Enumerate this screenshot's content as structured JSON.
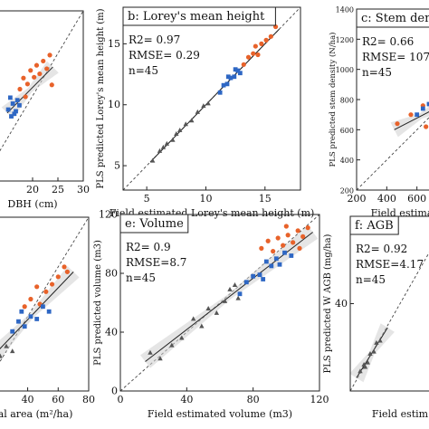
{
  "figure": {
    "panel_order": [
      "a",
      "b",
      "c",
      "d",
      "e",
      "f"
    ]
  },
  "chart_data": [
    {
      "id": "a",
      "type": "scatter",
      "title": "",
      "xlabel": "DBH (cm)",
      "ylabel": "",
      "xlim": [
        10,
        30
      ],
      "ylim": [
        10,
        30
      ],
      "xticks": [
        20,
        25,
        30
      ],
      "yticks": [],
      "stats": [],
      "series": [
        {
          "name": "",
          "color": "#e8622a",
          "marker": "circle",
          "points": [
            [
              17.5,
              20.8
            ],
            [
              18.2,
              22.1
            ],
            [
              19,
              21.4
            ],
            [
              19.6,
              23.0
            ],
            [
              20.3,
              22.2
            ],
            [
              20.8,
              23.6
            ],
            [
              21.4,
              22.6
            ],
            [
              22.1,
              24.1
            ],
            [
              22.8,
              23.2
            ],
            [
              23.4,
              24.8
            ],
            [
              23.8,
              21.3
            ],
            [
              18.6,
              19.9
            ]
          ]
        },
        {
          "name": "",
          "color": "#2e67c4",
          "marker": "square",
          "points": [
            [
              15.2,
              18.4
            ],
            [
              15.8,
              17.6
            ],
            [
              16.1,
              19.1
            ],
            [
              16.7,
              18.2
            ],
            [
              17.0,
              19.5
            ],
            [
              17.4,
              18.9
            ],
            [
              15.6,
              19.8
            ],
            [
              16.4,
              17.9
            ]
          ]
        }
      ],
      "fit": {
        "x1": 15,
        "y1": 18,
        "x2": 24,
        "y2": 23.4
      },
      "ci": true
    },
    {
      "id": "b",
      "type": "scatter",
      "title": "Lorey's mean height",
      "letter": "b",
      "xlabel": "Field estimated Lorey's mean height (m)",
      "ylabel": "PLS predicted Lorey's mean height (m)",
      "xlim": [
        3,
        18
      ],
      "ylim": [
        3,
        18
      ],
      "xticks": [
        5,
        10,
        15
      ],
      "yticks": [
        5,
        10,
        15
      ],
      "stats": [
        "R2= 0.97",
        "RMSE= 0.29",
        "n=45"
      ],
      "series": [
        {
          "name": "",
          "color": "#555555",
          "marker": "triangle",
          "points": [
            [
              5.5,
              5.4
            ],
            [
              6.1,
              6.2
            ],
            [
              6.7,
              6.8
            ],
            [
              7.2,
              7.1
            ],
            [
              7.8,
              7.9
            ],
            [
              8.3,
              8.4
            ],
            [
              8.8,
              8.7
            ],
            [
              9.3,
              9.4
            ],
            [
              9.8,
              9.9
            ],
            [
              10.2,
              10.1
            ],
            [
              7.5,
              7.6
            ],
            [
              6.4,
              6.5
            ]
          ]
        },
        {
          "name": "",
          "color": "#2e67c4",
          "marker": "square",
          "points": [
            [
              11.2,
              11.0
            ],
            [
              11.5,
              11.6
            ],
            [
              11.8,
              11.7
            ],
            [
              12.1,
              12.2
            ],
            [
              12.4,
              12.3
            ],
            [
              12.7,
              12.8
            ],
            [
              12.9,
              12.6
            ],
            [
              11.9,
              12.3
            ],
            [
              12.5,
              12.9
            ]
          ]
        },
        {
          "name": "",
          "color": "#e8622a",
          "marker": "circle",
          "points": [
            [
              13.2,
              13.3
            ],
            [
              13.6,
              13.9
            ],
            [
              14.0,
              14.2
            ],
            [
              14.4,
              14.1
            ],
            [
              14.7,
              15.0
            ],
            [
              15.1,
              15.3
            ],
            [
              15.5,
              15.6
            ],
            [
              15.9,
              16.4
            ],
            [
              14.2,
              14.8
            ]
          ]
        }
      ],
      "fit": {
        "x1": 5.3,
        "y1": 5.3,
        "x2": 16.2,
        "y2": 16.2
      },
      "ci": false
    },
    {
      "id": "c",
      "type": "scatter",
      "title": "Stem dens",
      "letter": "c",
      "xlabel": "Field estima",
      "ylabel": "PLS predicted stem density (N/ha)",
      "xlim": [
        200,
        800
      ],
      "ylim": [
        200,
        1400
      ],
      "xticks": [
        200,
        400,
        600
      ],
      "yticks": [
        200,
        400,
        600,
        800,
        1000,
        1200,
        1400
      ],
      "stats": [
        "R2= 0.66",
        "RMSE= 107",
        "n=45"
      ],
      "series": [
        {
          "name": "",
          "color": "#e8622a",
          "marker": "circle",
          "points": [
            [
              470,
              640
            ],
            [
              560,
              700
            ],
            [
              640,
              760
            ],
            [
              700,
              820
            ],
            [
              660,
              620
            ]
          ]
        },
        {
          "name": "",
          "color": "#2e67c4",
          "marker": "square",
          "points": [
            [
              600,
              700
            ],
            [
              640,
              740
            ],
            [
              680,
              770
            ],
            [
              720,
              800
            ]
          ]
        }
      ],
      "fit": {
        "x1": 450,
        "y1": 600,
        "x2": 800,
        "y2": 780
      },
      "ci": true
    },
    {
      "id": "d",
      "type": "scatter",
      "title": "",
      "xlabel": "al area (m²/ha)",
      "ylabel": "",
      "xlim": [
        10,
        80
      ],
      "ylim": [
        10,
        80
      ],
      "xticks": [
        40,
        60,
        80
      ],
      "yticks": [],
      "stats": [],
      "series": [
        {
          "name": "",
          "color": "#e8622a",
          "marker": "circle",
          "points": [
            [
              38,
              44
            ],
            [
              42,
              47
            ],
            [
              48,
              45
            ],
            [
              52,
              50
            ],
            [
              56,
              53
            ],
            [
              60,
              56
            ],
            [
              64,
              60
            ],
            [
              66,
              58
            ],
            [
              46,
              52
            ]
          ]
        },
        {
          "name": "",
          "color": "#2e67c4",
          "marker": "square",
          "points": [
            [
              30,
              34
            ],
            [
              34,
              38
            ],
            [
              38,
              36
            ],
            [
              42,
              40
            ],
            [
              46,
              39
            ],
            [
              50,
              44
            ],
            [
              54,
              42
            ],
            [
              36,
              42
            ]
          ]
        },
        {
          "name": "",
          "color": "#555555",
          "marker": "triangle",
          "points": [
            [
              18,
              22
            ],
            [
              22,
              24
            ],
            [
              26,
              28
            ],
            [
              30,
              26
            ]
          ]
        }
      ],
      "fit": {
        "x1": 14,
        "y1": 22,
        "x2": 70,
        "y2": 58
      },
      "ci": true
    },
    {
      "id": "e",
      "type": "scatter",
      "title": "Volume",
      "letter": "e",
      "xlabel": "Field estimated volume (m3)",
      "ylabel": "PLS predicted volume (m3)",
      "xlim": [
        0,
        120
      ],
      "ylim": [
        0,
        120
      ],
      "xticks": [
        0,
        40,
        80,
        120
      ],
      "yticks": [
        0,
        40,
        80,
        120
      ],
      "stats": [
        "R2= 0.9",
        "RMSE=8.7",
        "n=45"
      ],
      "series": [
        {
          "name": "",
          "color": "#555555",
          "marker": "triangle",
          "points": [
            [
              18,
              26
            ],
            [
              24,
              22
            ],
            [
              31,
              31
            ],
            [
              37,
              36
            ],
            [
              44,
              49
            ],
            [
              49,
              44
            ],
            [
              53,
              56
            ],
            [
              58,
              53
            ],
            [
              63,
              61
            ],
            [
              66,
              69
            ],
            [
              71,
              63
            ],
            [
              69,
              72
            ]
          ]
        },
        {
          "name": "",
          "color": "#2e67c4",
          "marker": "square",
          "points": [
            [
              72,
              66
            ],
            [
              76,
              74
            ],
            [
              80,
              78
            ],
            [
              84,
              79
            ],
            [
              86,
              76
            ],
            [
              88,
              88
            ],
            [
              91,
              85
            ],
            [
              94,
              90
            ],
            [
              96,
              86
            ],
            [
              99,
              94
            ],
            [
              103,
              92
            ]
          ]
        },
        {
          "name": "",
          "color": "#e8622a",
          "marker": "circle",
          "points": [
            [
              85,
              97
            ],
            [
              89,
              102
            ],
            [
              92,
              95
            ],
            [
              95,
              104
            ],
            [
              98,
              99
            ],
            [
              101,
              106
            ],
            [
              104,
              101
            ],
            [
              107,
              109
            ],
            [
              110,
              105
            ],
            [
              113,
              111
            ],
            [
              100,
              112
            ],
            [
              108,
              97
            ]
          ]
        }
      ],
      "fit": {
        "x1": 15,
        "y1": 20,
        "x2": 116,
        "y2": 108
      },
      "ci": true
    },
    {
      "id": "f",
      "type": "scatter",
      "title": "AGB",
      "letter": "f",
      "xlabel": "Field estim",
      "ylabel": "PLS predicted W AGB (mg/ha)",
      "xlim": [
        0,
        80
      ],
      "ylim": [
        0,
        80
      ],
      "xticks": [],
      "yticks": [
        40
      ],
      "stats": [
        "R2= 0.92",
        "RMSE=4.17",
        "n=45"
      ],
      "series": [
        {
          "name": "",
          "color": "#555555",
          "marker": "triangle",
          "points": [
            [
              8,
              9
            ],
            [
              11,
              12
            ],
            [
              14,
              13
            ],
            [
              16,
              17
            ],
            [
              19,
              18
            ],
            [
              21,
              22
            ],
            [
              24,
              23
            ],
            [
              12,
              11
            ]
          ]
        }
      ],
      "fit": {
        "x1": 5,
        "y1": 6,
        "x2": 30,
        "y2": 29
      },
      "ci": true
    }
  ]
}
